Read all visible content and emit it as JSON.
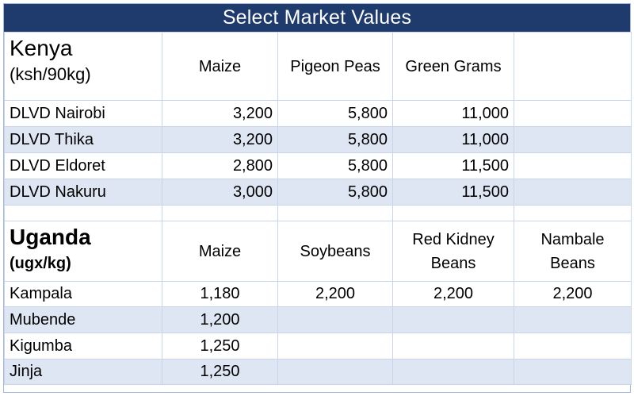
{
  "title": "Select Market Values",
  "kenya": {
    "country": "Kenya",
    "unit": "(ksh/90kg)",
    "columns": [
      "Maize",
      "Pigeon Peas",
      "Green Grams",
      ""
    ],
    "rows": [
      {
        "market": "DLVD Nairobi",
        "values": [
          "3,200",
          "5,800",
          "11,000",
          ""
        ]
      },
      {
        "market": "DLVD Thika",
        "values": [
          "3,200",
          "5,800",
          "11,000",
          ""
        ]
      },
      {
        "market": "DLVD Eldoret",
        "values": [
          "2,800",
          "5,800",
          "11,500",
          ""
        ]
      },
      {
        "market": "DLVD Nakuru",
        "values": [
          "3,000",
          "5,800",
          "11,500",
          ""
        ]
      }
    ]
  },
  "uganda": {
    "country": "Uganda",
    "unit": "(ugx/kg)",
    "columns": [
      "Maize",
      "Soybeans",
      "Red Kidney Beans",
      "Nambale Beans"
    ],
    "rows": [
      {
        "market": "Kampala",
        "values": [
          "1,180",
          "2,200",
          "2,200",
          "2,200"
        ]
      },
      {
        "market": "Mubende",
        "values": [
          "1,200",
          "",
          "",
          ""
        ]
      },
      {
        "market": "Kigumba",
        "values": [
          "1,250",
          "",
          "",
          ""
        ]
      },
      {
        "market": "Jinja",
        "values": [
          "1,250",
          "",
          "",
          ""
        ]
      }
    ]
  }
}
